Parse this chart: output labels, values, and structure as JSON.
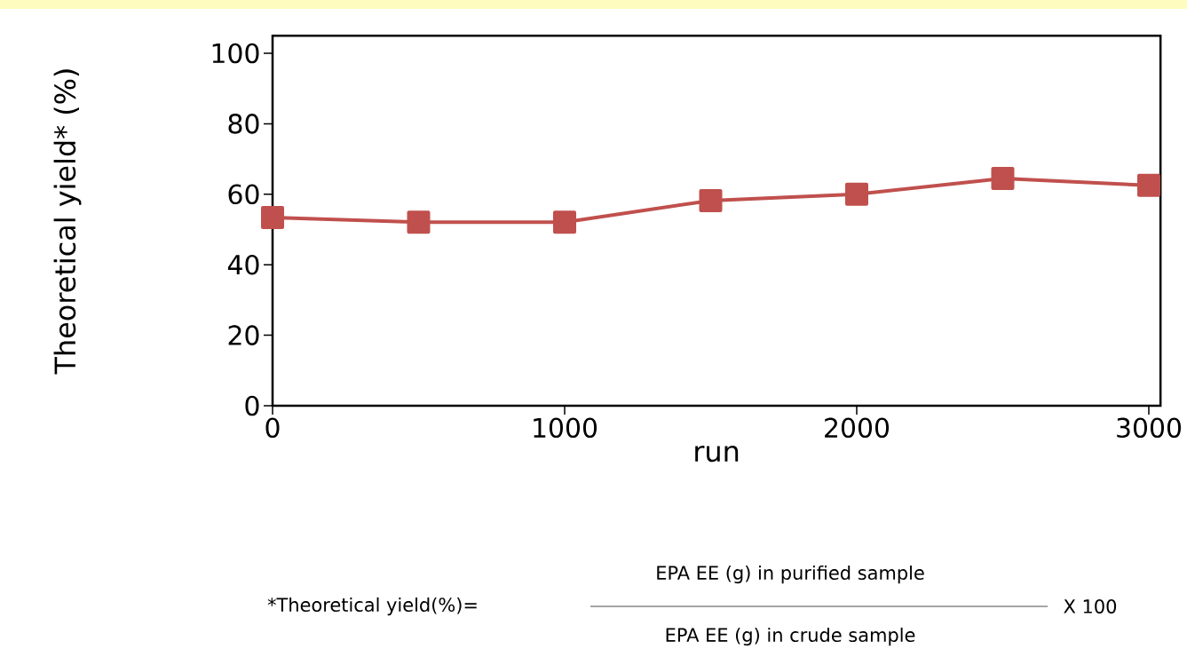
{
  "chart_data": {
    "type": "line",
    "xlabel": "run",
    "ylabel": "Theoretical yield* (%)",
    "x": [
      0,
      500,
      1000,
      1500,
      2000,
      2500,
      3000
    ],
    "series": [
      {
        "color": "#c0504d",
        "values": [
          53.4,
          52.1,
          52.1,
          58.2,
          60,
          64.5,
          62.5
        ]
      }
    ],
    "xlim": [
      0,
      3040
    ],
    "ylim": [
      0,
      105
    ],
    "xticks": [
      0,
      1000,
      2000,
      3000
    ],
    "yticks": [
      0,
      20,
      40,
      60,
      80,
      100
    ],
    "marker": "square",
    "line_style": "solid",
    "grid": false,
    "annotations": [
      "*Theoretical yield(%)=",
      "EPA EE (g) in purified sample",
      "EPA EE (g) in crude sample",
      "X 100"
    ]
  }
}
